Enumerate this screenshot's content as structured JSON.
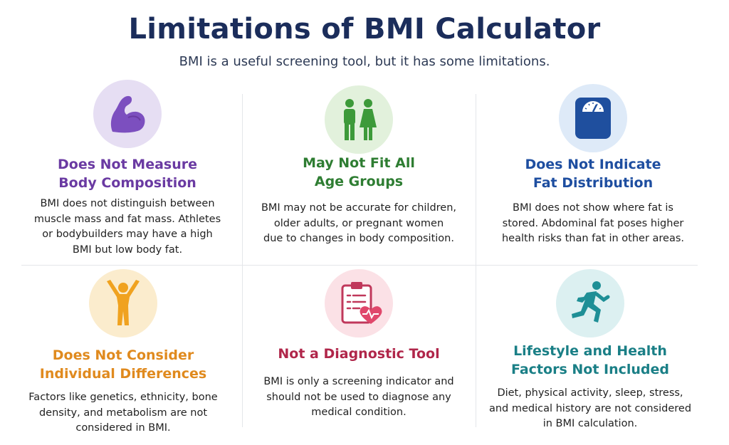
{
  "header": {
    "title": "Limitations of BMI Calculator",
    "subtitle": "BMI is a useful screening tool, but it has some limitations."
  },
  "colors": {
    "title": "#1b2d5b",
    "purple": "#6a3aa2",
    "green": "#2e7d32",
    "blue": "#1e4ea0",
    "orange": "#e08a1e",
    "crimson": "#b0264a",
    "teal": "#1a7f86"
  },
  "cards": [
    {
      "icon": "muscle-arm-icon",
      "title_lines": [
        "Does Not Measure",
        "Body Composition"
      ],
      "desc_lines": [
        "BMI does not distinguish between",
        "muscle mass and fat mass. Athletes",
        "or bodybuilders may have a high",
        "BMI but low body fat."
      ]
    },
    {
      "icon": "man-woman-icon",
      "title_lines": [
        "May Not Fit All",
        "Age Groups"
      ],
      "desc_lines": [
        "BMI may not be accurate for children,",
        "older adults, or pregnant women",
        "due to changes in body composition."
      ]
    },
    {
      "icon": "weight-scale-icon",
      "title_lines": [
        "Does Not Indicate",
        "Fat Distribution"
      ],
      "desc_lines": [
        "BMI does not show where fat is",
        "stored. Abdominal fat poses higher",
        "health risks than fat in other areas."
      ]
    },
    {
      "icon": "person-arms-up-icon",
      "title_lines": [
        "Does Not Consider",
        "Individual Differences"
      ],
      "desc_lines": [
        "Factors like genetics, ethnicity, bone",
        "density, and metabolism are not",
        "considered in BMI."
      ]
    },
    {
      "icon": "clipboard-heart-icon",
      "title_lines": [
        "Not a Diagnostic Tool"
      ],
      "desc_lines": [
        "BMI is only a screening indicator and",
        "should not be used to diagnose any",
        "medical condition."
      ]
    },
    {
      "icon": "running-person-icon",
      "title_lines": [
        "Lifestyle and Health",
        "Factors Not Included"
      ],
      "desc_lines": [
        "Diet, physical activity, sleep, stress,",
        "and medical history are not considered",
        "in BMI calculation."
      ]
    }
  ]
}
